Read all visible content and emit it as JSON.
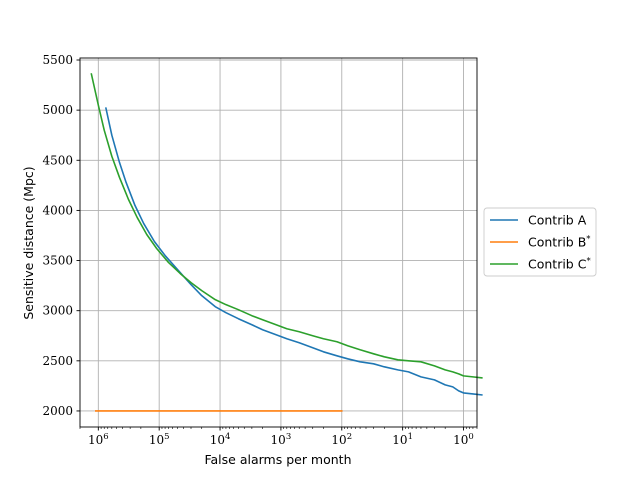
{
  "chart_data": {
    "type": "line",
    "title": "",
    "xlabel": "False alarms per month",
    "ylabel": "Sensitive distance (Mpc)",
    "x_scale": "log",
    "x_reversed": true,
    "xlim": [
      2000000,
      0.6
    ],
    "ylim": [
      1840,
      5520
    ],
    "grid": true,
    "legend_position": "outside-right",
    "x_tick_values": [
      1000000,
      100000,
      10000,
      1000,
      100,
      10,
      1
    ],
    "x_tick_labels": [
      "10^6",
      "10^5",
      "10^4",
      "10^3",
      "10^2",
      "10^1",
      "10^0"
    ],
    "y_ticks": [
      2000,
      2500,
      3000,
      3500,
      4000,
      4500,
      5000,
      5500
    ],
    "y_tick_labels": [
      "2000",
      "2500",
      "3000",
      "3500",
      "4000",
      "4500",
      "5000",
      "5500"
    ],
    "series": [
      {
        "name": "Contrib A",
        "color": "#1f77b4",
        "points": [
          [
            750000,
            5020
          ],
          [
            600000,
            4750
          ],
          [
            450000,
            4480
          ],
          [
            350000,
            4280
          ],
          [
            250000,
            4050
          ],
          [
            180000,
            3870
          ],
          [
            120000,
            3690
          ],
          [
            80000,
            3550
          ],
          [
            50000,
            3410
          ],
          [
            30000,
            3260
          ],
          [
            20000,
            3150
          ],
          [
            12000,
            3040
          ],
          [
            8000,
            2980
          ],
          [
            5000,
            2920
          ],
          [
            3000,
            2860
          ],
          [
            2000,
            2810
          ],
          [
            1200,
            2760
          ],
          [
            800,
            2720
          ],
          [
            500,
            2680
          ],
          [
            300,
            2630
          ],
          [
            200,
            2590
          ],
          [
            120,
            2550
          ],
          [
            80,
            2520
          ],
          [
            50,
            2490
          ],
          [
            30,
            2470
          ],
          [
            20,
            2440
          ],
          [
            12,
            2410
          ],
          [
            8,
            2390
          ],
          [
            5,
            2340
          ],
          [
            3,
            2310
          ],
          [
            2,
            2260
          ],
          [
            1.5,
            2240
          ],
          [
            1.2,
            2200
          ],
          [
            1.0,
            2180
          ],
          [
            0.7,
            2170
          ],
          [
            0.5,
            2160
          ]
        ]
      },
      {
        "name": "Contrib B*",
        "color": "#ff7f0e",
        "points": [
          [
            1100000,
            2000
          ],
          [
            100,
            2000
          ]
        ]
      },
      {
        "name": "Contrib C*",
        "color": "#2ca02c",
        "points": [
          [
            1300000,
            5360
          ],
          [
            1000000,
            5050
          ],
          [
            800000,
            4800
          ],
          [
            600000,
            4540
          ],
          [
            450000,
            4330
          ],
          [
            320000,
            4110
          ],
          [
            230000,
            3930
          ],
          [
            160000,
            3760
          ],
          [
            110000,
            3620
          ],
          [
            70000,
            3480
          ],
          [
            45000,
            3370
          ],
          [
            30000,
            3280
          ],
          [
            20000,
            3200
          ],
          [
            12000,
            3110
          ],
          [
            8000,
            3060
          ],
          [
            5000,
            3010
          ],
          [
            3000,
            2950
          ],
          [
            2000,
            2910
          ],
          [
            1200,
            2860
          ],
          [
            800,
            2820
          ],
          [
            500,
            2790
          ],
          [
            300,
            2750
          ],
          [
            200,
            2720
          ],
          [
            120,
            2690
          ],
          [
            80,
            2650
          ],
          [
            50,
            2610
          ],
          [
            30,
            2570
          ],
          [
            20,
            2540
          ],
          [
            12,
            2510
          ],
          [
            8,
            2500
          ],
          [
            5,
            2490
          ],
          [
            3,
            2450
          ],
          [
            2,
            2410
          ],
          [
            1.5,
            2390
          ],
          [
            1.2,
            2370
          ],
          [
            1.0,
            2350
          ],
          [
            0.7,
            2340
          ],
          [
            0.5,
            2330
          ]
        ]
      }
    ]
  }
}
